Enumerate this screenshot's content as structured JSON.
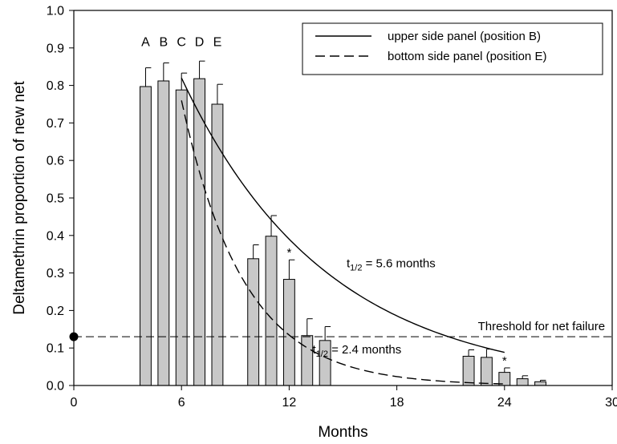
{
  "chart_data": {
    "type": "bar",
    "xlabel": "Months",
    "ylabel": "Deltamethrin proportion of new net",
    "xlim": [
      0,
      30
    ],
    "ylim": [
      0,
      1.0
    ],
    "xticks": [
      0,
      6,
      12,
      18,
      24,
      30
    ],
    "yticks": [
      0.0,
      0.1,
      0.2,
      0.3,
      0.4,
      0.5,
      0.6,
      0.7,
      0.8,
      0.9,
      1.0
    ],
    "bar_color": "#c8c8c8",
    "bars": [
      {
        "x": 4,
        "value": 0.797,
        "error": 0.05
      },
      {
        "x": 5,
        "value": 0.812,
        "error": 0.048
      },
      {
        "x": 6,
        "value": 0.788,
        "error": 0.045
      },
      {
        "x": 7,
        "value": 0.818,
        "error": 0.047
      },
      {
        "x": 8,
        "value": 0.75,
        "error": 0.053
      },
      {
        "x": 10,
        "value": 0.338,
        "error": 0.037
      },
      {
        "x": 11,
        "value": 0.398,
        "error": 0.055
      },
      {
        "x": 12,
        "value": 0.283,
        "error": 0.052
      },
      {
        "x": 13,
        "value": 0.133,
        "error": 0.045
      },
      {
        "x": 14,
        "value": 0.12,
        "error": 0.037
      },
      {
        "x": 22,
        "value": 0.078,
        "error": 0.017
      },
      {
        "x": 23,
        "value": 0.075,
        "error": 0.022
      },
      {
        "x": 24,
        "value": 0.035,
        "error": 0.012
      },
      {
        "x": 25,
        "value": 0.018,
        "error": 0.008
      },
      {
        "x": 26,
        "value": 0.01,
        "error": 0.004
      }
    ],
    "position_labels": [
      {
        "x": 4,
        "text": "A"
      },
      {
        "x": 5,
        "text": "B"
      },
      {
        "x": 6,
        "text": "C"
      },
      {
        "x": 7,
        "text": "D"
      },
      {
        "x": 8,
        "text": "E"
      }
    ],
    "asterisks": [
      {
        "x": 12,
        "text": "*"
      },
      {
        "x": 24,
        "text": "*"
      }
    ],
    "series": [
      {
        "name": "upper side panel (position B)",
        "style": "solid",
        "x_start": 6,
        "x_end": 24,
        "y_start": 0.82,
        "half_life": 5.6
      },
      {
        "name": "bottom side panel (position E)",
        "style": "dashed",
        "x_start": 6,
        "x_end": 24,
        "y_start": 0.76,
        "half_life": 2.4
      }
    ],
    "threshold": {
      "value": 0.13,
      "label": "Threshold for net failure"
    },
    "marker": {
      "x": 0,
      "y": 0.13
    },
    "annotations": [
      {
        "base": "t",
        "sub": "1/2",
        "rest": " = 5.6 months",
        "x": 15.2,
        "y": 0.315
      },
      {
        "base": "t",
        "sub": "1/2",
        "rest": " = 2.4 months",
        "x": 13.3,
        "y": 0.085
      }
    ],
    "legend_position": "top-right"
  }
}
